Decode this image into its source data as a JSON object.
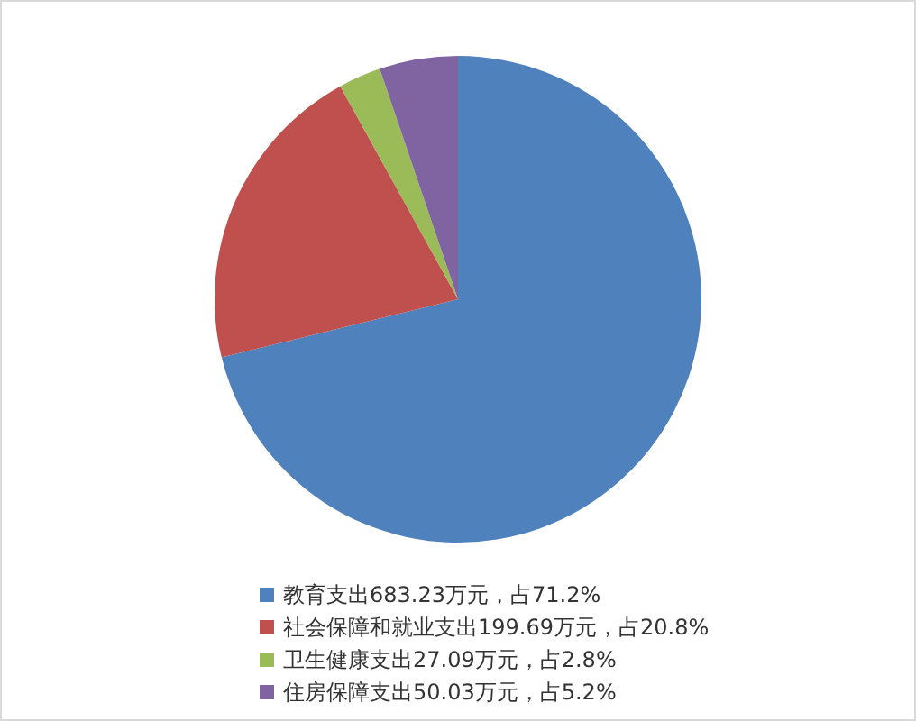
{
  "chart_data": {
    "type": "pie",
    "categories": [
      "教育支出683.23万元，占71.2%",
      "社会保障和就业支出199.69万元，占20.8%",
      "卫生健康支出27.09万元，占2.8%",
      "住房保障支出50.03万元，占5.2%"
    ],
    "values": [
      683.23,
      199.69,
      27.09,
      50.03
    ],
    "colors": [
      "#4f81bd",
      "#c0504d",
      "#9bbb59",
      "#8064a2"
    ],
    "legend": "bottom"
  }
}
